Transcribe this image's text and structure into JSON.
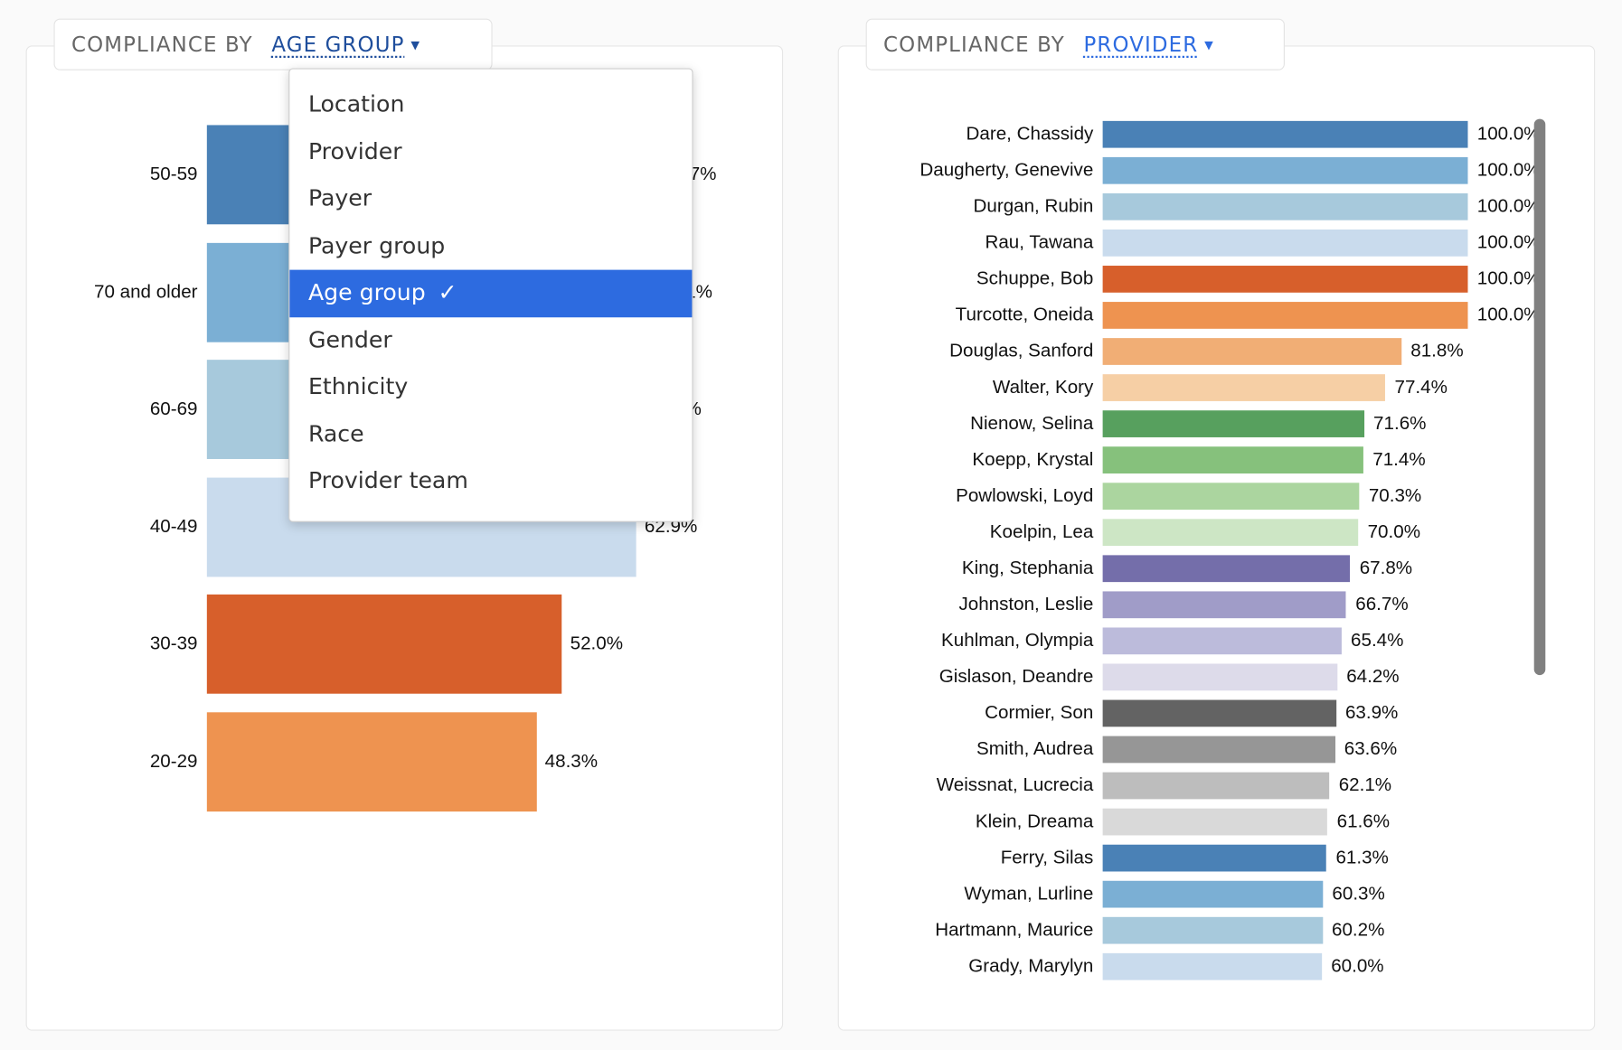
{
  "left": {
    "title_prefix": "COMPLIANCE BY",
    "title_selection": "AGE GROUP",
    "dropdown": {
      "items": [
        "Location",
        "Provider",
        "Payer",
        "Payer group",
        "Age group",
        "Gender",
        "Ethnicity",
        "Race",
        "Provider team"
      ],
      "selected": "Age group",
      "check_icon": "✓"
    }
  },
  "right": {
    "title_prefix": "COMPLIANCE BY",
    "title_selection": "PROVIDER"
  },
  "chart_data": [
    {
      "type": "bar",
      "orientation": "horizontal",
      "categories": [
        "50-59",
        "70 and older",
        "60-69",
        "40-49",
        "30-39",
        "20-29"
      ],
      "values": [
        65.7,
        65.1,
        63.5,
        62.9,
        52.0,
        48.3
      ],
      "labels": [
        "65.7%",
        "65.1%",
        "63.5%",
        "62.9%",
        "52.0%",
        "48.3%"
      ],
      "colors": [
        "#4a81b6",
        "#7bafd4",
        "#a7c9dc",
        "#c9dbed",
        "#d75f2b",
        "#ee9350"
      ],
      "xlim": [
        0,
        100
      ]
    },
    {
      "type": "bar",
      "orientation": "horizontal",
      "categories": [
        "Dare, Chassidy",
        "Daugherty, Genevive",
        "Durgan, Rubin",
        "Rau, Tawana",
        "Schuppe, Bob",
        "Turcotte, Oneida",
        "Douglas, Sanford",
        "Walter, Kory",
        "Nienow, Selina",
        "Koepp, Krystal",
        "Powlowski, Loyd",
        "Koelpin, Lea",
        "King, Stephania",
        "Johnston, Leslie",
        "Kuhlman, Olympia",
        "Gislason, Deandre",
        "Cormier, Son",
        "Smith, Audrea",
        "Weissnat, Lucrecia",
        "Klein, Dreama",
        "Ferry, Silas",
        "Wyman, Lurline",
        "Hartmann, Maurice",
        "Grady, Marylyn"
      ],
      "values": [
        100.0,
        100.0,
        100.0,
        100.0,
        100.0,
        100.0,
        81.8,
        77.4,
        71.6,
        71.4,
        70.3,
        70.0,
        67.8,
        66.7,
        65.4,
        64.2,
        63.9,
        63.6,
        62.1,
        61.6,
        61.3,
        60.3,
        60.2,
        60.0
      ],
      "labels": [
        "100.0%",
        "100.0%",
        "100.0%",
        "100.0%",
        "100.0%",
        "100.0%",
        "81.8%",
        "77.4%",
        "71.6%",
        "71.4%",
        "70.3%",
        "70.0%",
        "67.8%",
        "66.7%",
        "65.4%",
        "64.2%",
        "63.9%",
        "63.6%",
        "62.1%",
        "61.6%",
        "61.3%",
        "60.3%",
        "60.2%",
        "60.0%"
      ],
      "colors": [
        "#4a81b6",
        "#7bafd4",
        "#a7c9dc",
        "#c9dbed",
        "#d75f2b",
        "#ee9350",
        "#f1ae75",
        "#f6cfa5",
        "#57a05e",
        "#86c17c",
        "#abd59f",
        "#cde6c5",
        "#746eaa",
        "#a09cc8",
        "#bcbbdb",
        "#dddbea",
        "#636363",
        "#969696",
        "#bdbdbd",
        "#d9d9d9",
        "#4a81b6",
        "#7bafd4",
        "#a7c9dc",
        "#c9dbed"
      ],
      "xlim": [
        0,
        100
      ]
    }
  ]
}
